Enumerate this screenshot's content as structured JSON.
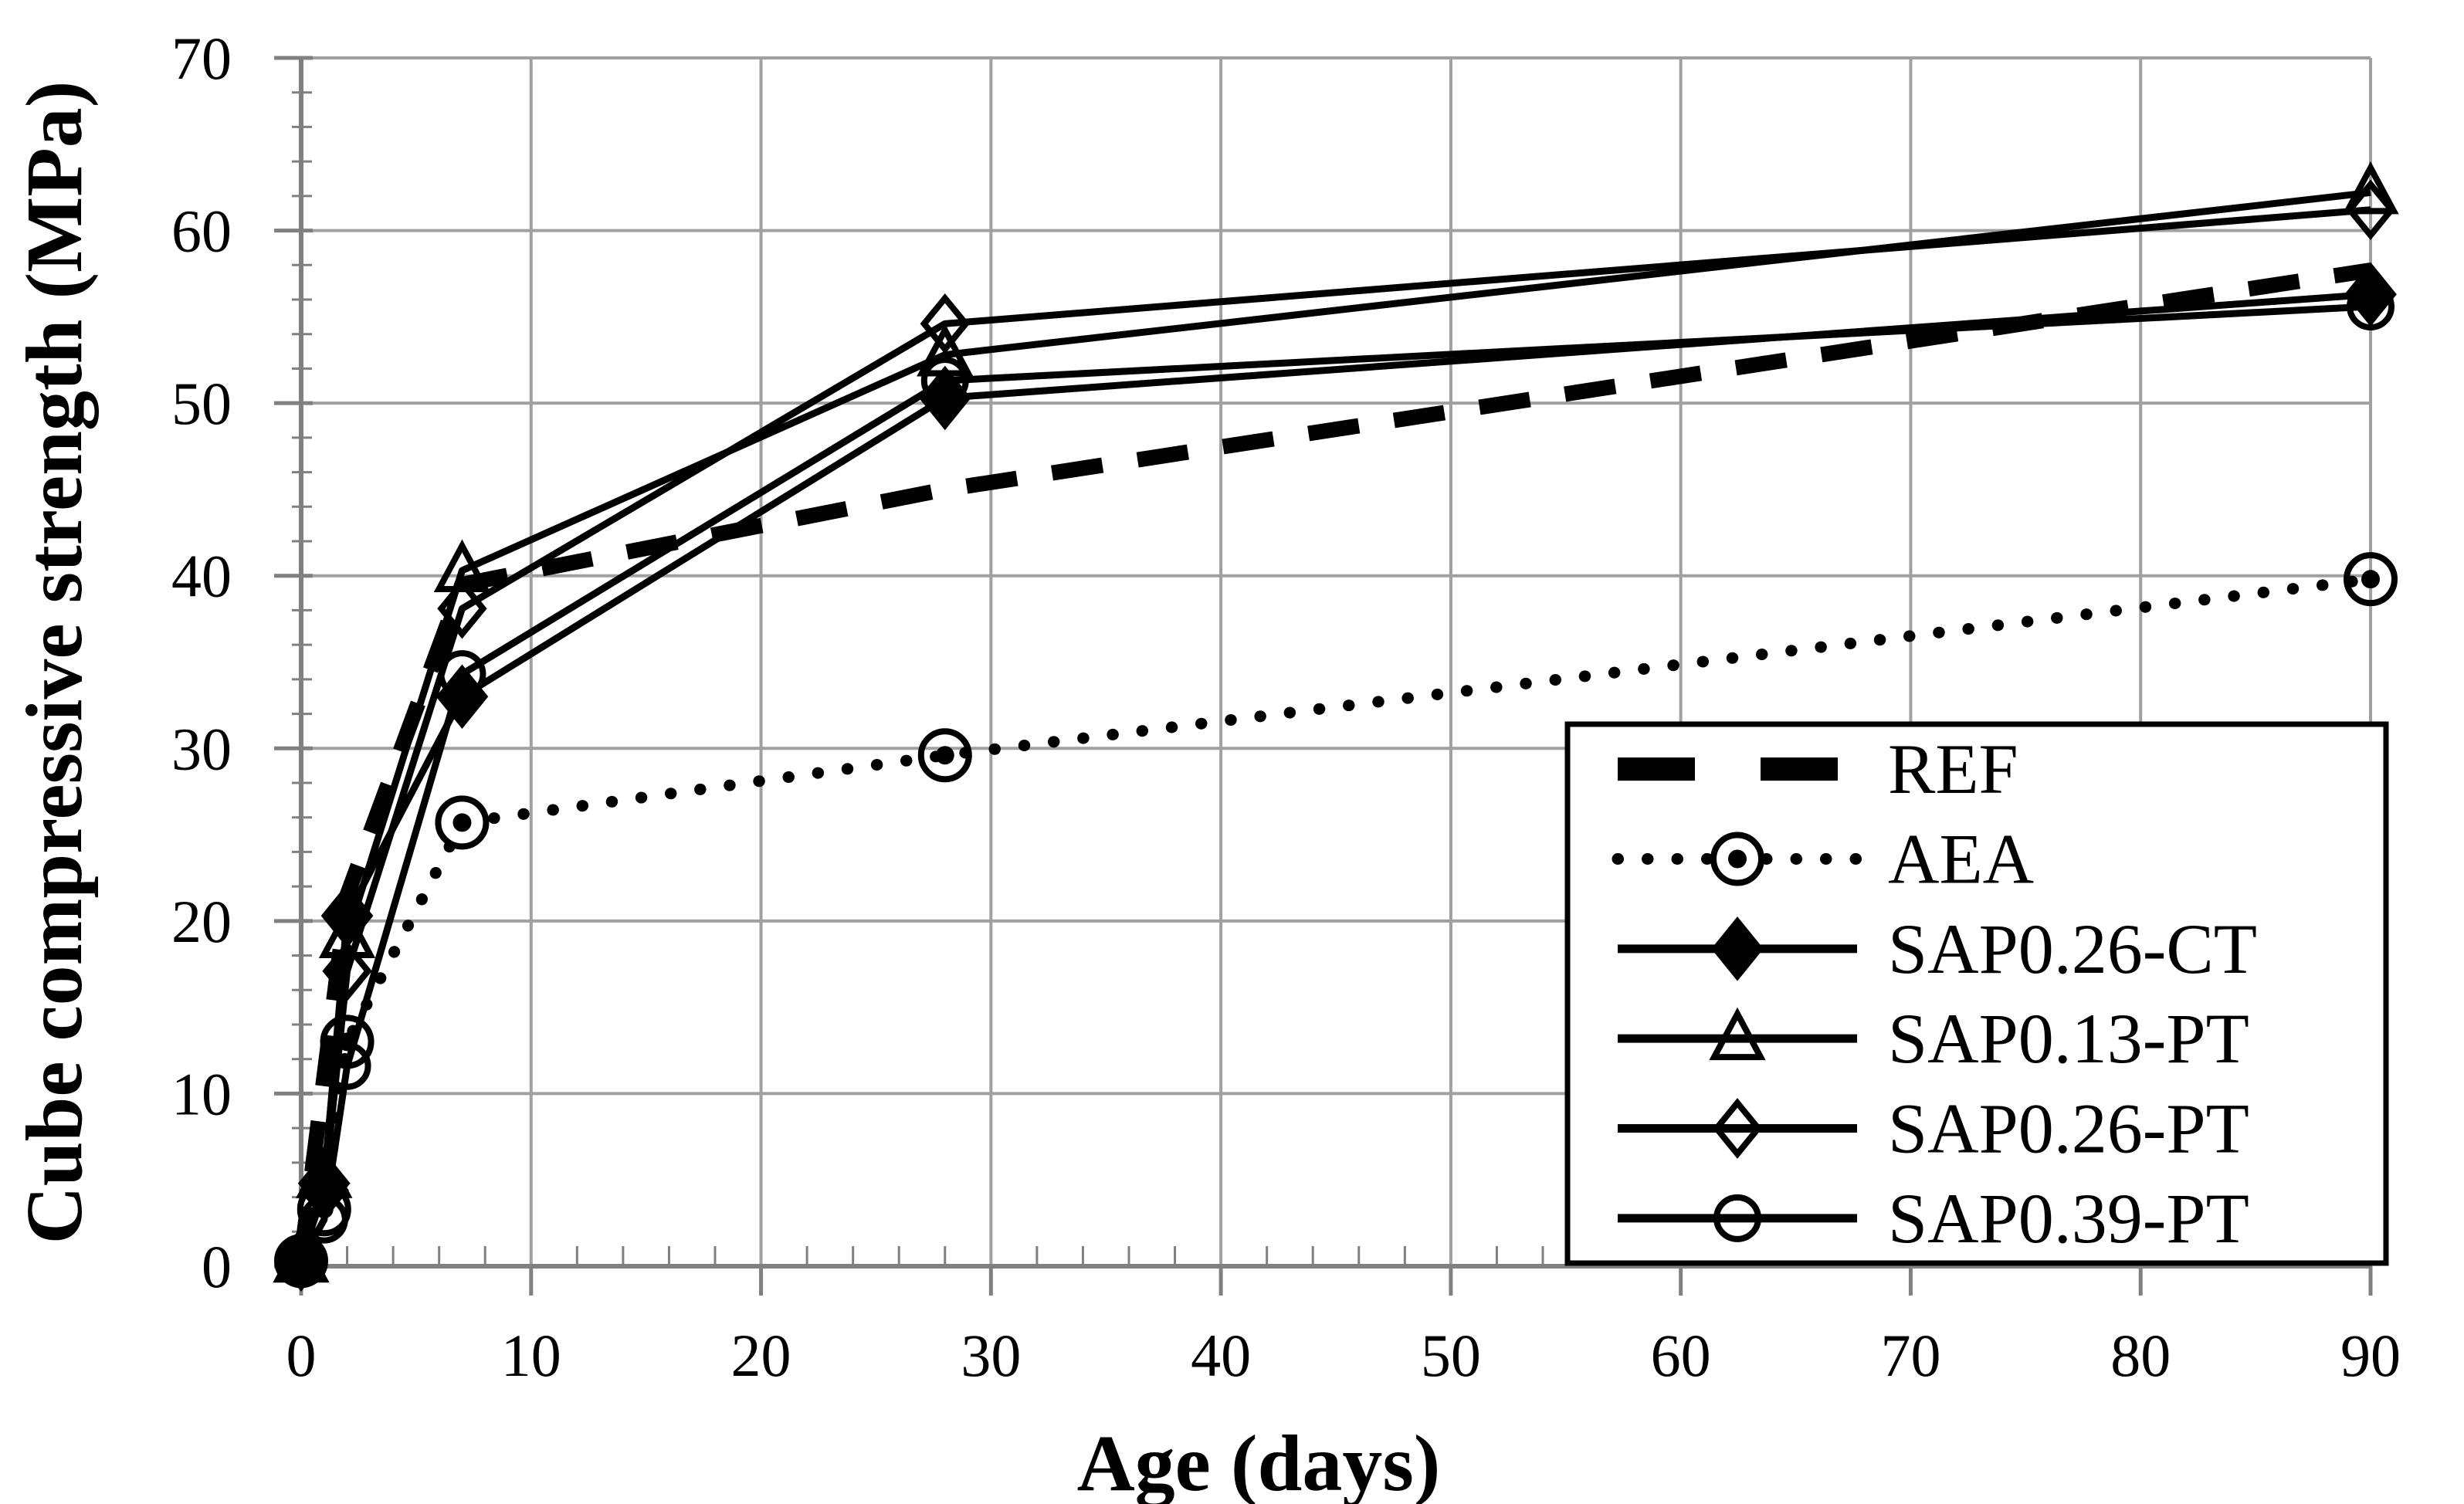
{
  "chart_data": {
    "type": "line",
    "title": "",
    "xlabel": "Age (days)",
    "ylabel": "Cube compressive strength (MPa)",
    "xlim": [
      0,
      90
    ],
    "ylim": [
      0,
      70
    ],
    "x_ticks": [
      0,
      10,
      20,
      30,
      40,
      50,
      60,
      70,
      80,
      90
    ],
    "y_ticks": [
      0,
      10,
      20,
      30,
      40,
      50,
      60,
      70
    ],
    "minor_tick_step": 2,
    "grid": true,
    "grid_color": "#a0a0a0",
    "axis_color": "#808080",
    "series_color": "#000000",
    "legend_position": "inside-right-bottom",
    "x": [
      0,
      1,
      2,
      7,
      28,
      90
    ],
    "series": [
      {
        "name": "REF",
        "style": "dashed",
        "marker": "none",
        "values": [
          0.5,
          11.0,
          21.5,
          39.5,
          45.0,
          57.7
        ]
      },
      {
        "name": "AEA",
        "style": "dotted",
        "marker": "circle-dot",
        "values": [
          0.3,
          3.3,
          13.0,
          25.7,
          29.6,
          39.8
        ]
      },
      {
        "name": "SAP0.26-CT",
        "style": "solid",
        "marker": "diamond-filled",
        "values": [
          0.4,
          4.8,
          20.3,
          33.0,
          50.3,
          56.3
        ]
      },
      {
        "name": "SAP0.13-PT",
        "style": "solid",
        "marker": "triangle-open",
        "values": [
          0.3,
          5.2,
          19.1,
          40.3,
          52.8,
          62.2
        ]
      },
      {
        "name": "SAP0.26-PT",
        "style": "solid",
        "marker": "diamond-open",
        "values": [
          0.4,
          4.4,
          17.1,
          38.1,
          54.6,
          61.2
        ]
      },
      {
        "name": "SAP0.39-PT",
        "style": "solid",
        "marker": "circle-open",
        "values": [
          0.3,
          2.7,
          11.6,
          34.3,
          51.3,
          55.6
        ]
      }
    ]
  }
}
